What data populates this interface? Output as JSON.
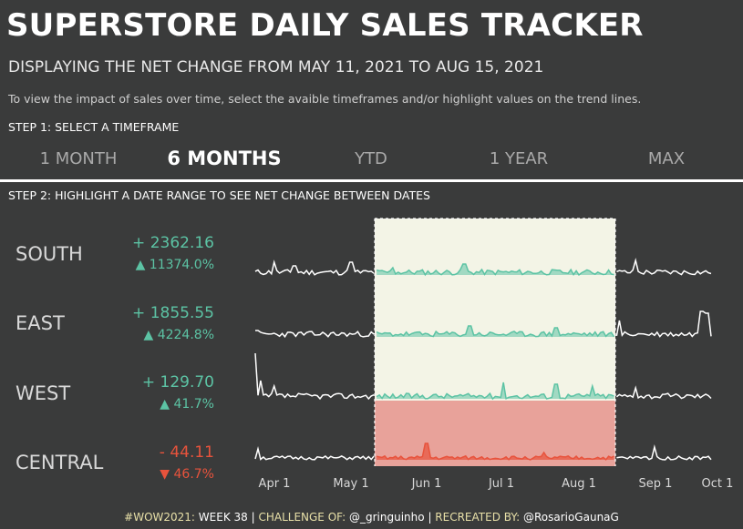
{
  "header": {
    "title": "SUPERSTORE DAILY SALES TRACKER",
    "subtitle": "DISPLAYING THE NET CHANGE FROM MAY 11, 2021 TO AUG 15, 2021",
    "instructions": "To view the impact of sales over time, select the avaible timeframes and/or highlight values on the trend lines."
  },
  "step1_label": "STEP 1: SELECT A TIMEFRAME",
  "timeframes": [
    {
      "label": "1 MONTH",
      "active": false
    },
    {
      "label": "6 MONTHS",
      "active": true
    },
    {
      "label": "YTD",
      "active": false
    },
    {
      "label": "1 YEAR",
      "active": false
    },
    {
      "label": "MAX",
      "active": false
    }
  ],
  "step2_label": "STEP 2: HIGHLIGHT A DATE RANGE TO SEE NET CHANGE BETWEEN DATES",
  "regions": [
    {
      "name": "SOUTH",
      "change": "+ 2362.16",
      "pct": "▲ 11374.0%",
      "trend": "up"
    },
    {
      "name": "EAST",
      "change": "+ 1855.55",
      "pct": "▲ 4224.8%",
      "trend": "up"
    },
    {
      "name": "WEST",
      "change": "+ 129.70",
      "pct": "▲ 41.7%",
      "trend": "up"
    },
    {
      "name": "CENTRAL",
      "change": "- 44.11",
      "pct": "▼ 46.7%",
      "trend": "down"
    }
  ],
  "axis_labels": [
    "Apr 1",
    "May 1",
    "Jun 1",
    "Jul 1",
    "Aug 1",
    "Sep 1",
    "Oct 1"
  ],
  "colors": {
    "background": "#3a3b3b",
    "positive": "#5cc3a4",
    "negative": "#e8533c",
    "highlight_band": "#f3f4e6",
    "negative_band": "#e8a29a"
  },
  "footer": {
    "hashtag": "#WOW2021:",
    "week": "WEEK 38",
    "challenge_label": "CHALLENGE OF:",
    "challenge_by": "@_gringuinho",
    "recreated_label": "RECREATED BY:",
    "recreated_by": "@RosarioGaunaG"
  }
}
